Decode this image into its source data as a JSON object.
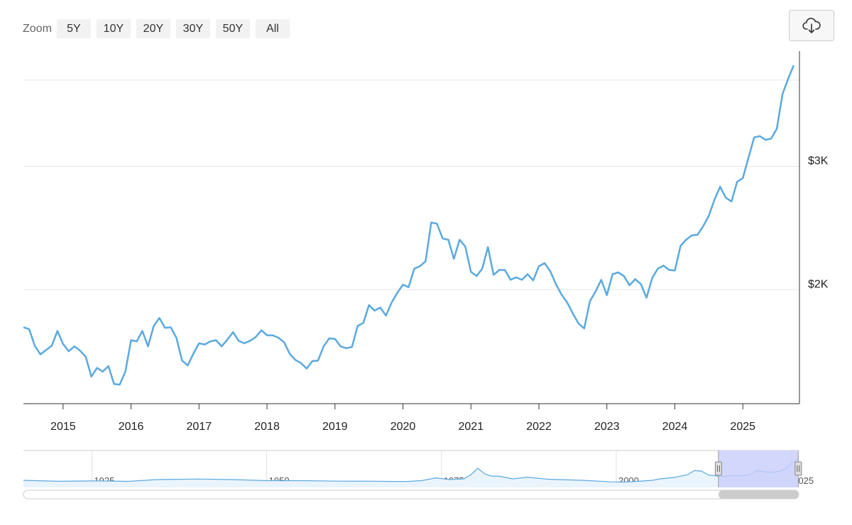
{
  "zoom": {
    "label": "Zoom",
    "buttons": [
      "5Y",
      "10Y",
      "20Y",
      "30Y",
      "50Y",
      "All"
    ]
  },
  "export_icon": "cloud-download-icon",
  "colors": {
    "line": "#5aa9e0",
    "grid": "#e6e6e6",
    "axis": "#333333",
    "navigator_mask": "#c9cdfb",
    "navigator_handle": "#dddddd",
    "scrollbar_thumb": "#cccccc"
  },
  "chart_data": {
    "type": "line",
    "title": "",
    "xlabel": "",
    "ylabel": "",
    "x_range": [
      "2014-06",
      "2025-11"
    ],
    "ylim": [
      1075,
      3820
    ],
    "y_ticks": [
      2000,
      3000
    ],
    "y_tick_labels": [
      "$2K",
      "$3K"
    ],
    "extra_gridlines": [
      3700
    ],
    "y_axis_position": "right",
    "grid": true,
    "x_tick_labels": [
      "2015",
      "2016",
      "2017",
      "2018",
      "2019",
      "2020",
      "2021",
      "2022",
      "2023",
      "2024",
      "2025"
    ],
    "series": [
      {
        "values": [
          [
            "2014-06",
            1695
          ],
          [
            "2014-07",
            1680
          ],
          [
            "2014-08",
            1545
          ],
          [
            "2014-09",
            1475
          ],
          [
            "2014-10",
            1510
          ],
          [
            "2014-11",
            1545
          ],
          [
            "2014-12",
            1665
          ],
          [
            "2015-01",
            1560
          ],
          [
            "2015-02",
            1500
          ],
          [
            "2015-03",
            1540
          ],
          [
            "2015-04",
            1505
          ],
          [
            "2015-05",
            1455
          ],
          [
            "2015-06",
            1295
          ],
          [
            "2015-07",
            1365
          ],
          [
            "2015-08",
            1335
          ],
          [
            "2015-09",
            1380
          ],
          [
            "2015-10",
            1235
          ],
          [
            "2015-11",
            1230
          ],
          [
            "2015-12",
            1335
          ],
          [
            "2016-01",
            1590
          ],
          [
            "2016-02",
            1580
          ],
          [
            "2016-03",
            1665
          ],
          [
            "2016-04",
            1540
          ],
          [
            "2016-05",
            1705
          ],
          [
            "2016-06",
            1770
          ],
          [
            "2016-07",
            1690
          ],
          [
            "2016-08",
            1695
          ],
          [
            "2016-09",
            1610
          ],
          [
            "2016-10",
            1425
          ],
          [
            "2016-11",
            1385
          ],
          [
            "2016-12",
            1480
          ],
          [
            "2017-01",
            1565
          ],
          [
            "2017-02",
            1555
          ],
          [
            "2017-03",
            1580
          ],
          [
            "2017-04",
            1590
          ],
          [
            "2017-05",
            1540
          ],
          [
            "2017-06",
            1595
          ],
          [
            "2017-07",
            1655
          ],
          [
            "2017-08",
            1585
          ],
          [
            "2017-09",
            1565
          ],
          [
            "2017-10",
            1585
          ],
          [
            "2017-11",
            1615
          ],
          [
            "2017-12",
            1670
          ],
          [
            "2018-01",
            1630
          ],
          [
            "2018-02",
            1630
          ],
          [
            "2018-03",
            1610
          ],
          [
            "2018-04",
            1575
          ],
          [
            "2018-05",
            1480
          ],
          [
            "2018-06",
            1430
          ],
          [
            "2018-07",
            1405
          ],
          [
            "2018-08",
            1360
          ],
          [
            "2018-09",
            1420
          ],
          [
            "2018-10",
            1425
          ],
          [
            "2018-11",
            1540
          ],
          [
            "2018-12",
            1605
          ],
          [
            "2019-01",
            1600
          ],
          [
            "2019-02",
            1540
          ],
          [
            "2019-03",
            1525
          ],
          [
            "2019-04",
            1535
          ],
          [
            "2019-05",
            1705
          ],
          [
            "2019-06",
            1730
          ],
          [
            "2019-07",
            1875
          ],
          [
            "2019-08",
            1830
          ],
          [
            "2019-09",
            1855
          ],
          [
            "2019-10",
            1790
          ],
          [
            "2019-11",
            1895
          ],
          [
            "2019-12",
            1975
          ],
          [
            "2020-01",
            2040
          ],
          [
            "2020-02",
            2020
          ],
          [
            "2020-03",
            2170
          ],
          [
            "2020-04",
            2190
          ],
          [
            "2020-05",
            2230
          ],
          [
            "2020-06",
            2545
          ],
          [
            "2020-07",
            2535
          ],
          [
            "2020-08",
            2415
          ],
          [
            "2020-09",
            2405
          ],
          [
            "2020-10",
            2250
          ],
          [
            "2020-11",
            2405
          ],
          [
            "2020-12",
            2350
          ],
          [
            "2021-01",
            2145
          ],
          [
            "2021-02",
            2110
          ],
          [
            "2021-03",
            2170
          ],
          [
            "2021-04",
            2345
          ],
          [
            "2021-05",
            2120
          ],
          [
            "2021-06",
            2160
          ],
          [
            "2021-07",
            2160
          ],
          [
            "2021-08",
            2080
          ],
          [
            "2021-09",
            2100
          ],
          [
            "2021-10",
            2080
          ],
          [
            "2021-11",
            2125
          ],
          [
            "2021-12",
            2075
          ],
          [
            "2022-01",
            2190
          ],
          [
            "2022-02",
            2215
          ],
          [
            "2022-03",
            2150
          ],
          [
            "2022-04",
            2045
          ],
          [
            "2022-05",
            1960
          ],
          [
            "2022-06",
            1895
          ],
          [
            "2022-07",
            1805
          ],
          [
            "2022-08",
            1725
          ],
          [
            "2022-09",
            1685
          ],
          [
            "2022-10",
            1905
          ],
          [
            "2022-11",
            1985
          ],
          [
            "2022-12",
            2080
          ],
          [
            "2023-01",
            1955
          ],
          [
            "2023-02",
            2125
          ],
          [
            "2023-03",
            2140
          ],
          [
            "2023-04",
            2110
          ],
          [
            "2023-05",
            2035
          ],
          [
            "2023-06",
            2085
          ],
          [
            "2023-07",
            2045
          ],
          [
            "2023-08",
            1935
          ],
          [
            "2023-09",
            2095
          ],
          [
            "2023-10",
            2170
          ],
          [
            "2023-11",
            2195
          ],
          [
            "2023-12",
            2160
          ],
          [
            "2024-01",
            2155
          ],
          [
            "2024-02",
            2355
          ],
          [
            "2024-03",
            2405
          ],
          [
            "2024-04",
            2440
          ],
          [
            "2024-05",
            2445
          ],
          [
            "2024-06",
            2515
          ],
          [
            "2024-07",
            2600
          ],
          [
            "2024-08",
            2730
          ],
          [
            "2024-09",
            2835
          ],
          [
            "2024-10",
            2745
          ],
          [
            "2024-11",
            2715
          ],
          [
            "2024-12",
            2875
          ],
          [
            "2025-01",
            2905
          ],
          [
            "2025-02",
            3070
          ],
          [
            "2025-03",
            3235
          ],
          [
            "2025-04",
            3245
          ],
          [
            "2025-05",
            3215
          ],
          [
            "2025-06",
            3225
          ],
          [
            "2025-07",
            3305
          ],
          [
            "2025-08",
            3585
          ],
          [
            "2025-09",
            3710
          ],
          [
            "2025-10",
            3820
          ]
        ]
      }
    ],
    "navigator": {
      "x_labels": [
        "1925",
        "1950",
        "1975",
        "2000",
        "2025"
      ],
      "x_range": [
        1915,
        2025.9
      ],
      "selected_range": [
        "2014-06",
        "2025-11"
      ],
      "values": [
        [
          1915,
          700
        ],
        [
          1920,
          560
        ],
        [
          1925,
          620
        ],
        [
          1930,
          550
        ],
        [
          1934,
          800
        ],
        [
          1940,
          880
        ],
        [
          1945,
          800
        ],
        [
          1950,
          650
        ],
        [
          1955,
          650
        ],
        [
          1960,
          580
        ],
        [
          1965,
          570
        ],
        [
          1968,
          540
        ],
        [
          1970,
          540
        ],
        [
          1972,
          660
        ],
        [
          1974,
          1050
        ],
        [
          1976,
          800
        ],
        [
          1978,
          900
        ],
        [
          1979,
          1500
        ],
        [
          1980,
          2400
        ],
        [
          1981,
          1600
        ],
        [
          1982,
          1300
        ],
        [
          1983,
          1300
        ],
        [
          1985,
          900
        ],
        [
          1987,
          1150
        ],
        [
          1990,
          850
        ],
        [
          1995,
          700
        ],
        [
          1999,
          480
        ],
        [
          2001,
          450
        ],
        [
          2003,
          560
        ],
        [
          2005,
          700
        ],
        [
          2006,
          900
        ],
        [
          2008,
          1100
        ],
        [
          2010,
          1500
        ],
        [
          2011,
          2100
        ],
        [
          2012,
          2000
        ],
        [
          2013,
          1450
        ],
        [
          2015,
          1250
        ],
        [
          2016,
          1400
        ],
        [
          2018,
          1350
        ],
        [
          2019,
          1550
        ],
        [
          2020,
          2100
        ],
        [
          2021,
          1900
        ],
        [
          2022,
          1850
        ],
        [
          2023,
          1950
        ],
        [
          2024,
          2300
        ],
        [
          2025,
          3200
        ],
        [
          2025.8,
          3820
        ]
      ]
    }
  }
}
